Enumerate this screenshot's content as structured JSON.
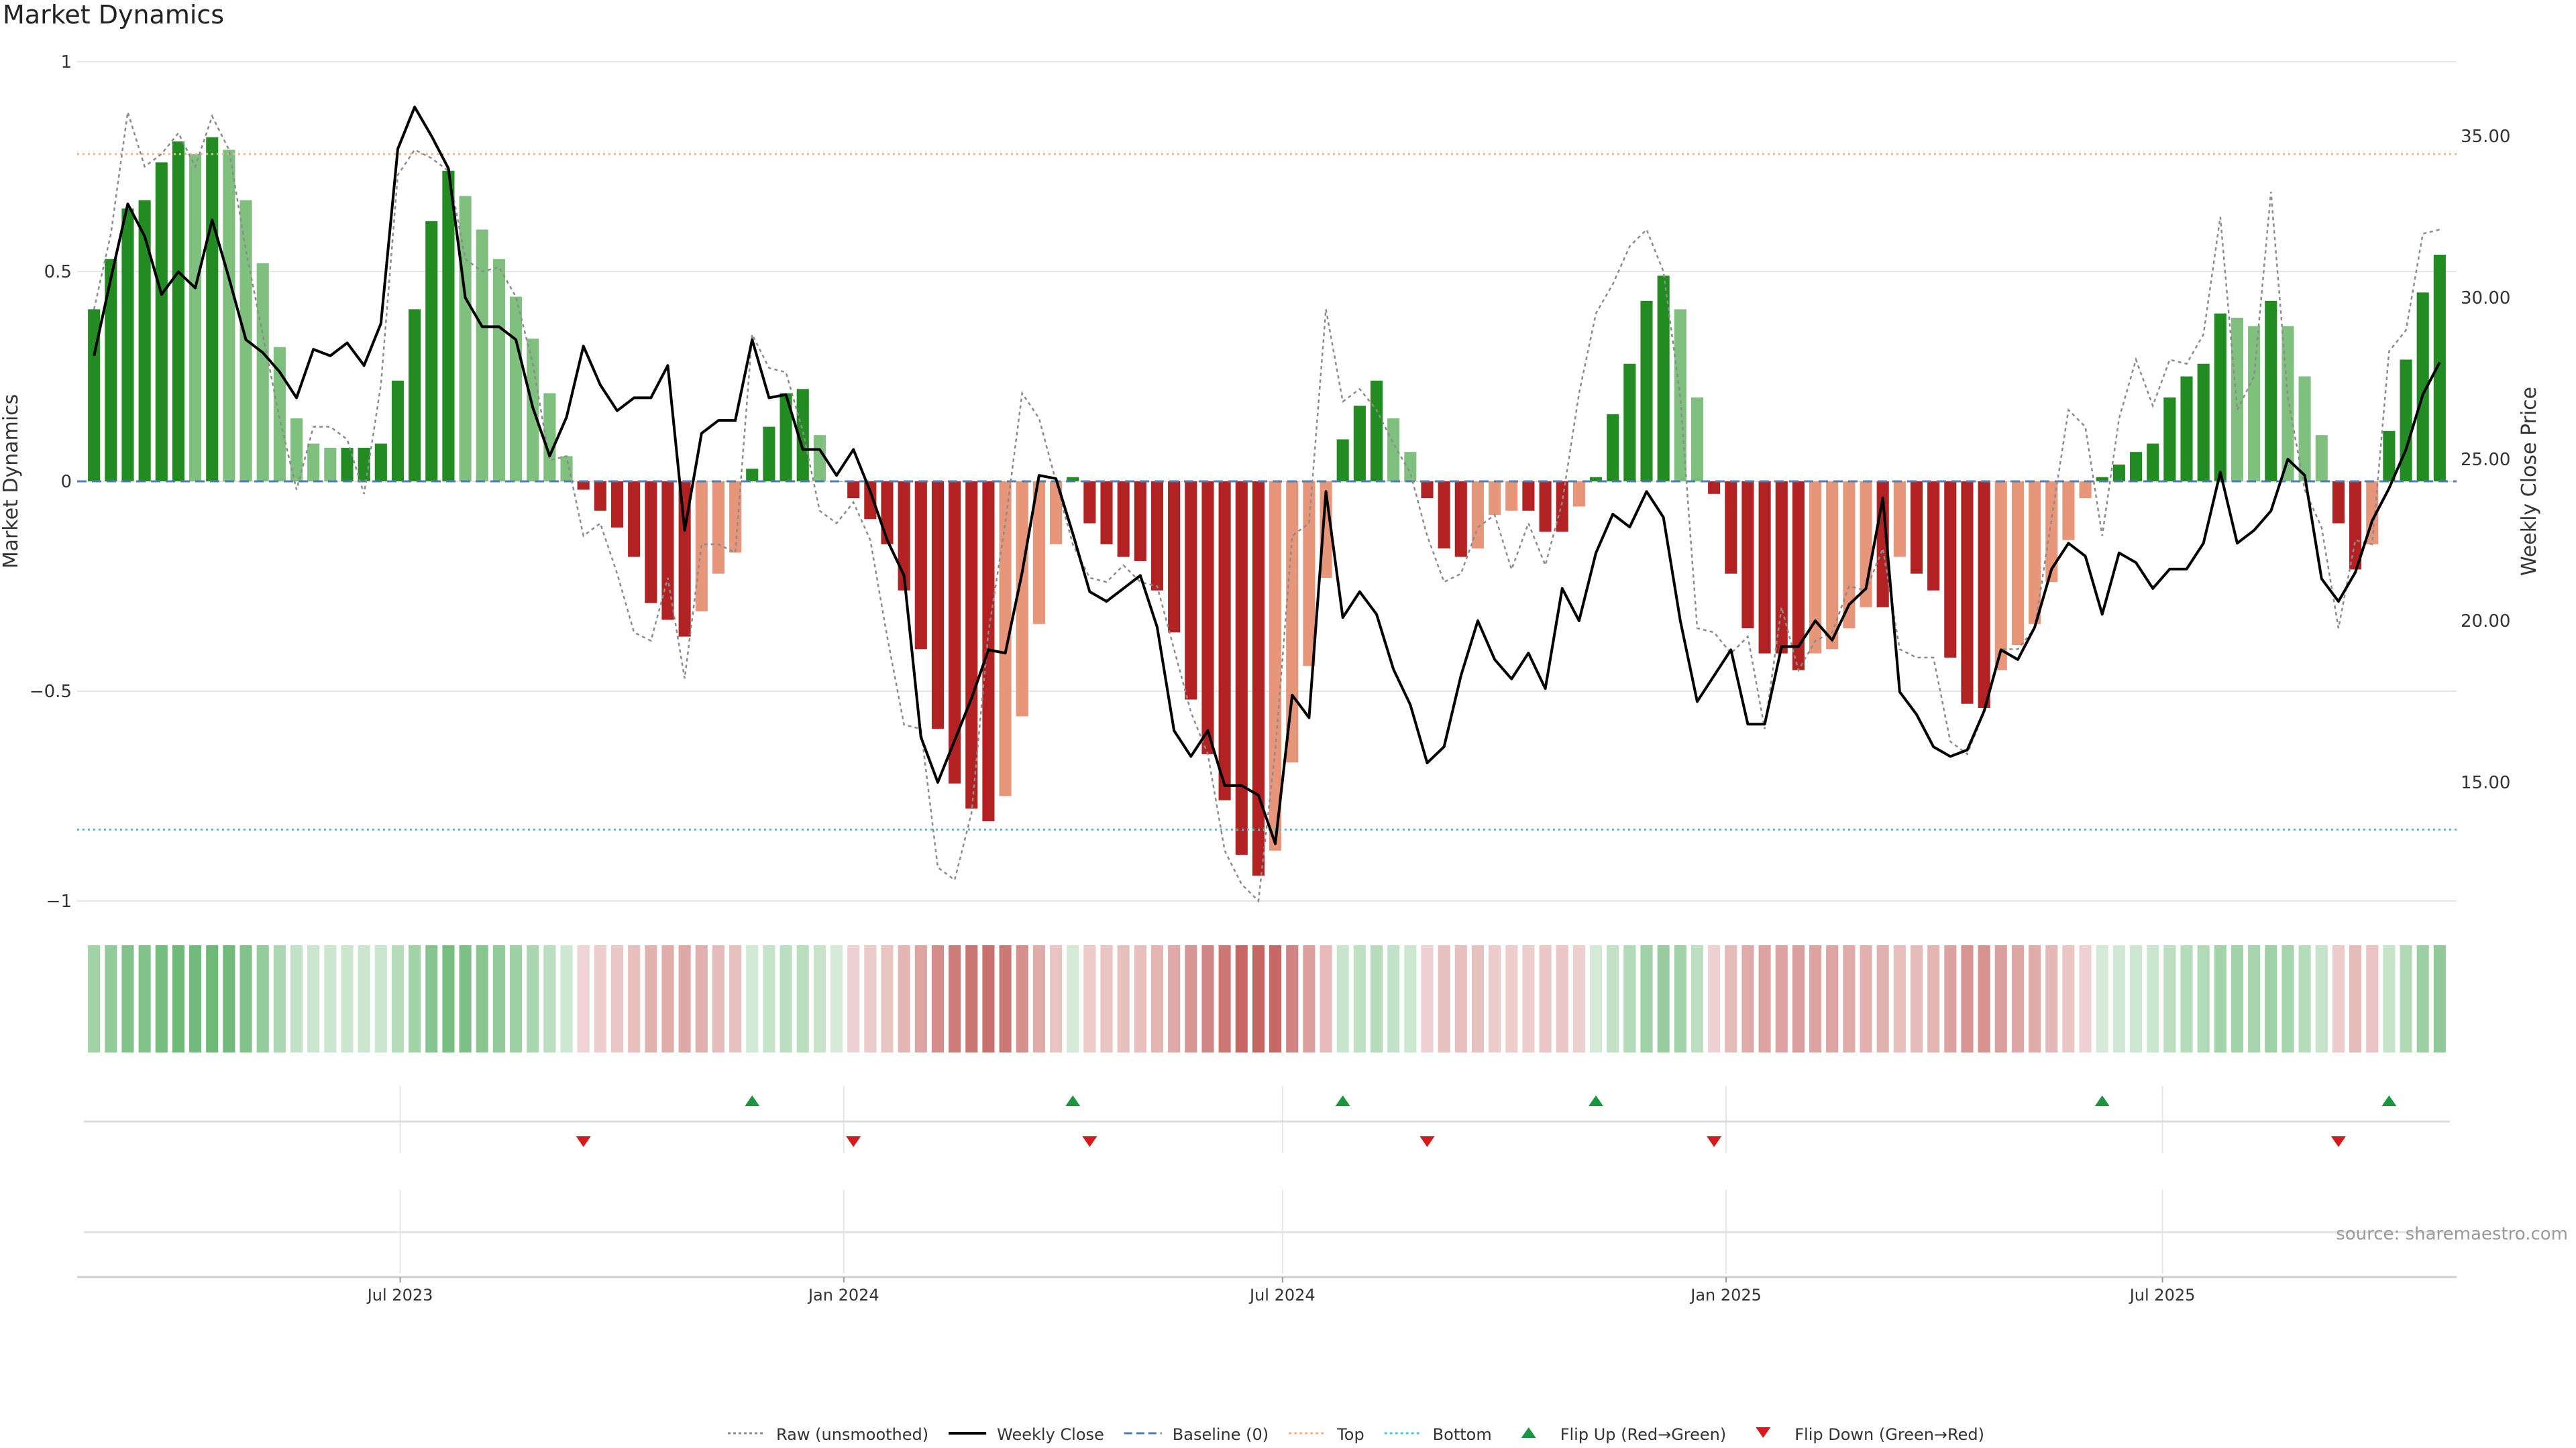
{
  "title": "Market Dynamics",
  "source_note": "source: sharemaestro.com",
  "colors": {
    "strong_green": "#228B22",
    "light_green": "#7fc07f",
    "strong_red": "#b22222",
    "light_red": "#e8967a",
    "raw_line": "#8c8c8c",
    "weekly_close": "#000000",
    "baseline": "#4b7fb5",
    "top": "#f0b48c",
    "bottom": "#4fc6cf",
    "flip_up": "#1a9641",
    "flip_down": "#d7191c",
    "grid": "#e6e6e6"
  },
  "chart_data": {
    "type": "bar",
    "title": "Market Dynamics",
    "ylabel": "Market Dynamics",
    "y2label": "Weekly Close Price",
    "ylim": [
      -1,
      1
    ],
    "y2lim": [
      11.3,
      38.4
    ],
    "yticks": [
      1,
      0.5,
      0,
      -0.5,
      -1
    ],
    "yticklabels": [
      "1",
      "0.5",
      "0",
      "−0.5",
      "−1"
    ],
    "y2ticks": [
      35,
      30,
      25,
      20,
      15
    ],
    "y2ticklabels": [
      "35.00",
      "30.00",
      "25.00",
      "20.00",
      "15.00"
    ],
    "xlim": [
      "2023-02-17",
      "2025-10-31"
    ],
    "xticks": [
      {
        "date": "2023-07-01",
        "label": "Jul 2023"
      },
      {
        "date": "2024-01-01",
        "label": "Jan 2024"
      },
      {
        "date": "2024-07-01",
        "label": "Jul 2024"
      },
      {
        "date": "2025-01-01",
        "label": "Jan 2025"
      },
      {
        "date": "2025-07-01",
        "label": "Jul 2025"
      }
    ],
    "grid": true,
    "legend_position": "bottom-center",
    "top_level": 0.78,
    "bottom_level": -0.83,
    "baseline_level": 0,
    "weeks": [
      {
        "date": "2023-02-24",
        "value": 0.41,
        "raw": 0.41,
        "close": 28.2
      },
      {
        "date": "2023-03-03",
        "value": 0.53,
        "raw": 0.59,
        "close": 30.6
      },
      {
        "date": "2023-03-10",
        "value": 0.65,
        "raw": 0.88,
        "close": 32.9
      },
      {
        "date": "2023-03-17",
        "value": 0.67,
        "raw": 0.75,
        "close": 31.9
      },
      {
        "date": "2023-03-24",
        "value": 0.76,
        "raw": 0.78,
        "close": 30.1
      },
      {
        "date": "2023-03-31",
        "value": 0.81,
        "raw": 0.83,
        "close": 30.8
      },
      {
        "date": "2023-04-07",
        "value": 0.78,
        "raw": 0.75,
        "close": 30.3
      },
      {
        "date": "2023-04-14",
        "value": 0.82,
        "raw": 0.87,
        "close": 32.4
      },
      {
        "date": "2023-04-21",
        "value": 0.79,
        "raw": 0.79,
        "close": 30.6
      },
      {
        "date": "2023-04-28",
        "value": 0.67,
        "raw": 0.55,
        "close": 28.7
      },
      {
        "date": "2023-05-05",
        "value": 0.52,
        "raw": 0.35,
        "close": 28.3
      },
      {
        "date": "2023-05-12",
        "value": 0.32,
        "raw": 0.15,
        "close": 27.7
      },
      {
        "date": "2023-05-19",
        "value": 0.15,
        "raw": -0.02,
        "close": 26.9
      },
      {
        "date": "2023-05-26",
        "value": 0.09,
        "raw": 0.13,
        "close": 28.4
      },
      {
        "date": "2023-06-02",
        "value": 0.08,
        "raw": 0.13,
        "close": 28.2
      },
      {
        "date": "2023-06-09",
        "value": 0.08,
        "raw": 0.1,
        "close": 28.6
      },
      {
        "date": "2023-06-16",
        "value": 0.08,
        "raw": -0.03,
        "close": 27.9
      },
      {
        "date": "2023-06-23",
        "value": 0.09,
        "raw": 0.23,
        "close": 29.2
      },
      {
        "date": "2023-06-30",
        "value": 0.24,
        "raw": 0.73,
        "close": 34.6
      },
      {
        "date": "2023-07-07",
        "value": 0.41,
        "raw": 0.79,
        "close": 35.9
      },
      {
        "date": "2023-07-14",
        "value": 0.62,
        "raw": 0.77,
        "close": 35.0
      },
      {
        "date": "2023-07-21",
        "value": 0.74,
        "raw": 0.74,
        "close": 34.0
      },
      {
        "date": "2023-07-28",
        "value": 0.68,
        "raw": 0.53,
        "close": 30.0
      },
      {
        "date": "2023-08-04",
        "value": 0.6,
        "raw": 0.5,
        "close": 29.1
      },
      {
        "date": "2023-08-11",
        "value": 0.53,
        "raw": 0.51,
        "close": 29.1
      },
      {
        "date": "2023-08-18",
        "value": 0.44,
        "raw": 0.44,
        "close": 28.7
      },
      {
        "date": "2023-08-25",
        "value": 0.34,
        "raw": 0.28,
        "close": 26.6
      },
      {
        "date": "2023-09-01",
        "value": 0.21,
        "raw": 0.05,
        "close": 25.1
      },
      {
        "date": "2023-09-08",
        "value": 0.06,
        "raw": 0.06,
        "close": 26.3
      },
      {
        "date": "2023-09-15",
        "value": -0.02,
        "raw": -0.13,
        "close": 28.5
      },
      {
        "date": "2023-09-22",
        "value": -0.07,
        "raw": -0.1,
        "close": 27.3
      },
      {
        "date": "2023-09-29",
        "value": -0.11,
        "raw": -0.22,
        "close": 26.5
      },
      {
        "date": "2023-10-06",
        "value": -0.18,
        "raw": -0.36,
        "close": 26.9
      },
      {
        "date": "2023-10-13",
        "value": -0.29,
        "raw": -0.38,
        "close": 26.9
      },
      {
        "date": "2023-10-20",
        "value": -0.33,
        "raw": -0.23,
        "close": 27.9
      },
      {
        "date": "2023-10-27",
        "value": -0.37,
        "raw": -0.47,
        "close": 22.8
      },
      {
        "date": "2023-11-03",
        "value": -0.31,
        "raw": -0.15,
        "close": 25.8
      },
      {
        "date": "2023-11-10",
        "value": -0.22,
        "raw": -0.15,
        "close": 26.2
      },
      {
        "date": "2023-11-17",
        "value": -0.17,
        "raw": -0.17,
        "close": 26.2
      },
      {
        "date": "2023-11-24",
        "value": 0.03,
        "raw": 0.35,
        "close": 28.7
      },
      {
        "date": "2023-12-01",
        "value": 0.13,
        "raw": 0.27,
        "close": 26.9
      },
      {
        "date": "2023-12-08",
        "value": 0.21,
        "raw": 0.26,
        "close": 27.0
      },
      {
        "date": "2023-12-15",
        "value": 0.22,
        "raw": 0.12,
        "close": 25.3
      },
      {
        "date": "2023-12-22",
        "value": 0.11,
        "raw": -0.07,
        "close": 25.3
      },
      {
        "date": "2023-12-29",
        "value": 0.0,
        "raw": -0.1,
        "close": 24.5
      },
      {
        "date": "2024-01-05",
        "value": -0.04,
        "raw": -0.05,
        "close": 25.3
      },
      {
        "date": "2024-01-12",
        "value": -0.09,
        "raw": -0.14,
        "close": 24.0
      },
      {
        "date": "2024-01-19",
        "value": -0.15,
        "raw": -0.37,
        "close": 22.5
      },
      {
        "date": "2024-01-26",
        "value": -0.26,
        "raw": -0.58,
        "close": 21.4
      },
      {
        "date": "2024-02-02",
        "value": -0.4,
        "raw": -0.59,
        "close": 16.4
      },
      {
        "date": "2024-02-09",
        "value": -0.59,
        "raw": -0.92,
        "close": 15.0
      },
      {
        "date": "2024-02-16",
        "value": -0.72,
        "raw": -0.95,
        "close": 16.3
      },
      {
        "date": "2024-02-23",
        "value": -0.78,
        "raw": -0.79,
        "close": 17.6
      },
      {
        "date": "2024-03-01",
        "value": -0.81,
        "raw": -0.36,
        "close": 19.1
      },
      {
        "date": "2024-03-08",
        "value": -0.75,
        "raw": -0.1,
        "close": 19.0
      },
      {
        "date": "2024-03-15",
        "value": -0.56,
        "raw": 0.21,
        "close": 21.5
      },
      {
        "date": "2024-03-22",
        "value": -0.34,
        "raw": 0.15,
        "close": 24.5
      },
      {
        "date": "2024-03-29",
        "value": -0.15,
        "raw": 0.0,
        "close": 24.4
      },
      {
        "date": "2024-04-05",
        "value": 0.01,
        "raw": -0.15,
        "close": 22.7
      },
      {
        "date": "2024-04-12",
        "value": -0.1,
        "raw": -0.23,
        "close": 20.9
      },
      {
        "date": "2024-04-19",
        "value": -0.15,
        "raw": -0.24,
        "close": 20.6
      },
      {
        "date": "2024-04-26",
        "value": -0.18,
        "raw": -0.2,
        "close": 21.0
      },
      {
        "date": "2024-05-03",
        "value": -0.19,
        "raw": -0.24,
        "close": 21.4
      },
      {
        "date": "2024-05-10",
        "value": -0.26,
        "raw": -0.25,
        "close": 19.8
      },
      {
        "date": "2024-05-17",
        "value": -0.36,
        "raw": -0.4,
        "close": 16.6
      },
      {
        "date": "2024-05-24",
        "value": -0.52,
        "raw": -0.55,
        "close": 15.8
      },
      {
        "date": "2024-05-31",
        "value": -0.65,
        "raw": -0.65,
        "close": 16.6
      },
      {
        "date": "2024-06-07",
        "value": -0.76,
        "raw": -0.88,
        "close": 14.9
      },
      {
        "date": "2024-06-14",
        "value": -0.89,
        "raw": -0.96,
        "close": 14.9
      },
      {
        "date": "2024-06-21",
        "value": -0.94,
        "raw": -1.0,
        "close": 14.6
      },
      {
        "date": "2024-06-28",
        "value": -0.88,
        "raw": -0.64,
        "close": 13.1
      },
      {
        "date": "2024-07-05",
        "value": -0.67,
        "raw": -0.13,
        "close": 17.7
      },
      {
        "date": "2024-07-12",
        "value": -0.44,
        "raw": -0.1,
        "close": 17.0
      },
      {
        "date": "2024-07-19",
        "value": -0.23,
        "raw": 0.41,
        "close": 24.0
      },
      {
        "date": "2024-07-26",
        "value": 0.1,
        "raw": 0.19,
        "close": 20.1
      },
      {
        "date": "2024-08-02",
        "value": 0.18,
        "raw": 0.22,
        "close": 20.9
      },
      {
        "date": "2024-08-09",
        "value": 0.24,
        "raw": 0.17,
        "close": 20.2
      },
      {
        "date": "2024-08-16",
        "value": 0.15,
        "raw": 0.09,
        "close": 18.5
      },
      {
        "date": "2024-08-23",
        "value": 0.07,
        "raw": 0.02,
        "close": 17.4
      },
      {
        "date": "2024-08-30",
        "value": -0.04,
        "raw": -0.13,
        "close": 15.6
      },
      {
        "date": "2024-09-06",
        "value": -0.16,
        "raw": -0.24,
        "close": 16.1
      },
      {
        "date": "2024-09-13",
        "value": -0.18,
        "raw": -0.22,
        "close": 18.3
      },
      {
        "date": "2024-09-20",
        "value": -0.16,
        "raw": -0.11,
        "close": 20.0
      },
      {
        "date": "2024-09-27",
        "value": -0.08,
        "raw": -0.08,
        "close": 18.8
      },
      {
        "date": "2024-10-04",
        "value": -0.07,
        "raw": -0.21,
        "close": 18.2
      },
      {
        "date": "2024-10-11",
        "value": -0.07,
        "raw": -0.1,
        "close": 19.0
      },
      {
        "date": "2024-10-18",
        "value": -0.12,
        "raw": -0.2,
        "close": 17.9
      },
      {
        "date": "2024-10-25",
        "value": -0.12,
        "raw": -0.05,
        "close": 21.0
      },
      {
        "date": "2024-11-01",
        "value": -0.06,
        "raw": 0.21,
        "close": 20.0
      },
      {
        "date": "2024-11-08",
        "value": 0.01,
        "raw": 0.4,
        "close": 22.1
      },
      {
        "date": "2024-11-15",
        "value": 0.16,
        "raw": 0.47,
        "close": 23.3
      },
      {
        "date": "2024-11-22",
        "value": 0.28,
        "raw": 0.56,
        "close": 22.9
      },
      {
        "date": "2024-11-29",
        "value": 0.43,
        "raw": 0.6,
        "close": 24.0
      },
      {
        "date": "2024-12-06",
        "value": 0.49,
        "raw": 0.5,
        "close": 23.2
      },
      {
        "date": "2024-12-13",
        "value": 0.41,
        "raw": 0.2,
        "close": 20.0
      },
      {
        "date": "2024-12-20",
        "value": 0.2,
        "raw": -0.35,
        "close": 17.5
      },
      {
        "date": "2024-12-27",
        "value": -0.03,
        "raw": -0.36,
        "close": 18.3
      },
      {
        "date": "2025-01-03",
        "value": -0.22,
        "raw": -0.41,
        "close": 19.1
      },
      {
        "date": "2025-01-10",
        "value": -0.35,
        "raw": -0.37,
        "close": 16.8
      },
      {
        "date": "2025-01-17",
        "value": -0.41,
        "raw": -0.59,
        "close": 16.8
      },
      {
        "date": "2025-01-24",
        "value": -0.41,
        "raw": -0.3,
        "close": 19.2
      },
      {
        "date": "2025-01-31",
        "value": -0.45,
        "raw": -0.45,
        "close": 19.2
      },
      {
        "date": "2025-02-07",
        "value": -0.41,
        "raw": -0.38,
        "close": 20.0
      },
      {
        "date": "2025-02-14",
        "value": -0.4,
        "raw": -0.36,
        "close": 19.4
      },
      {
        "date": "2025-02-21",
        "value": -0.35,
        "raw": -0.25,
        "close": 20.5
      },
      {
        "date": "2025-02-28",
        "value": -0.3,
        "raw": -0.26,
        "close": 21.0
      },
      {
        "date": "2025-03-07",
        "value": -0.3,
        "raw": -0.16,
        "close": 23.8
      },
      {
        "date": "2025-03-14",
        "value": -0.18,
        "raw": -0.4,
        "close": 17.8
      },
      {
        "date": "2025-03-21",
        "value": -0.22,
        "raw": -0.42,
        "close": 17.1
      },
      {
        "date": "2025-03-28",
        "value": -0.26,
        "raw": -0.42,
        "close": 16.1
      },
      {
        "date": "2025-04-04",
        "value": -0.42,
        "raw": -0.62,
        "close": 15.8
      },
      {
        "date": "2025-04-11",
        "value": -0.53,
        "raw": -0.65,
        "close": 16.0
      },
      {
        "date": "2025-04-18",
        "value": -0.54,
        "raw": -0.55,
        "close": 17.2
      },
      {
        "date": "2025-04-25",
        "value": -0.45,
        "raw": -0.4,
        "close": 19.1
      },
      {
        "date": "2025-05-02",
        "value": -0.39,
        "raw": -0.4,
        "close": 18.8
      },
      {
        "date": "2025-05-09",
        "value": -0.34,
        "raw": -0.35,
        "close": 19.8
      },
      {
        "date": "2025-05-16",
        "value": -0.24,
        "raw": -0.09,
        "close": 21.6
      },
      {
        "date": "2025-05-23",
        "value": -0.14,
        "raw": 0.17,
        "close": 22.4
      },
      {
        "date": "2025-05-30",
        "value": -0.04,
        "raw": 0.13,
        "close": 22.0
      },
      {
        "date": "2025-06-06",
        "value": 0.01,
        "raw": -0.13,
        "close": 20.2
      },
      {
        "date": "2025-06-13",
        "value": 0.04,
        "raw": 0.15,
        "close": 22.1
      },
      {
        "date": "2025-06-20",
        "value": 0.07,
        "raw": 0.29,
        "close": 21.8
      },
      {
        "date": "2025-06-27",
        "value": 0.09,
        "raw": 0.18,
        "close": 21.0
      },
      {
        "date": "2025-07-04",
        "value": 0.2,
        "raw": 0.29,
        "close": 21.6
      },
      {
        "date": "2025-07-11",
        "value": 0.25,
        "raw": 0.28,
        "close": 21.6
      },
      {
        "date": "2025-07-18",
        "value": 0.28,
        "raw": 0.35,
        "close": 22.4
      },
      {
        "date": "2025-07-25",
        "value": 0.4,
        "raw": 0.63,
        "close": 24.6
      },
      {
        "date": "2025-08-01",
        "value": 0.39,
        "raw": 0.17,
        "close": 22.4
      },
      {
        "date": "2025-08-08",
        "value": 0.37,
        "raw": 0.25,
        "close": 22.8
      },
      {
        "date": "2025-08-15",
        "value": 0.43,
        "raw": 0.69,
        "close": 23.4
      },
      {
        "date": "2025-08-22",
        "value": 0.37,
        "raw": 0.2,
        "close": 25.0
      },
      {
        "date": "2025-08-29",
        "value": 0.25,
        "raw": -0.02,
        "close": 24.5
      },
      {
        "date": "2025-09-05",
        "value": 0.11,
        "raw": -0.11,
        "close": 21.3
      },
      {
        "date": "2025-09-12",
        "value": -0.1,
        "raw": -0.35,
        "close": 20.6
      },
      {
        "date": "2025-09-19",
        "value": -0.21,
        "raw": -0.14,
        "close": 21.5
      },
      {
        "date": "2025-09-26",
        "value": -0.15,
        "raw": -0.15,
        "close": 23.1
      },
      {
        "date": "2025-10-03",
        "value": 0.12,
        "raw": 0.31,
        "close": 24.1
      },
      {
        "date": "2025-10-10",
        "value": 0.29,
        "raw": 0.36,
        "close": 25.3
      },
      {
        "date": "2025-10-17",
        "value": 0.45,
        "raw": 0.59,
        "close": 27.0
      },
      {
        "date": "2025-10-24",
        "value": 0.54,
        "raw": 0.6,
        "close": 28.0
      }
    ],
    "flip_up_dates": [
      "2023-11-24",
      "2024-04-05",
      "2024-07-26",
      "2024-11-08",
      "2025-06-06",
      "2025-10-03"
    ],
    "flip_down_dates": [
      "2023-09-15",
      "2024-01-05",
      "2024-04-12",
      "2024-08-30",
      "2024-12-27",
      "2025-09-12"
    ],
    "series": [
      {
        "name": "Raw (unsmoothed)",
        "style": "dotted",
        "color": "#8c8c8c"
      },
      {
        "name": "Weekly Close",
        "style": "solid",
        "color": "#000000"
      },
      {
        "name": "Baseline (0)",
        "style": "dashed",
        "color": "#4b7fb5"
      },
      {
        "name": "Top",
        "style": "dotted",
        "color": "#f0b48c"
      },
      {
        "name": "Bottom",
        "style": "dotted",
        "color": "#4fc6cf"
      },
      {
        "name": "Flip Up (Red→Green)",
        "style": "marker-up",
        "color": "#1a9641"
      },
      {
        "name": "Flip Down (Green→Red)",
        "style": "marker-down",
        "color": "#d7191c"
      }
    ]
  }
}
